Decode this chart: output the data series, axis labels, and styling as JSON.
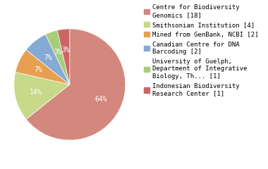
{
  "labels": [
    "Centre for Biodiversity\nGenomics [18]",
    "Smithsonian Institution [4]",
    "Mined from GenBank, NCBI [2]",
    "Canadian Centre for DNA\nBarcoding [2]",
    "University of Guelph,\nDepartment of Integrative\nBiology, Th... [1]",
    "Indonesian Biodiversity\nResearch Center [1]"
  ],
  "values": [
    18,
    4,
    2,
    2,
    1,
    1
  ],
  "colors": [
    "#d4877c",
    "#c8d98a",
    "#e8a050",
    "#85aad4",
    "#a8cc7a",
    "#cc6666"
  ],
  "pct_labels": [
    "64%",
    "14%",
    "7%",
    "7%",
    "3%",
    "3%"
  ],
  "text_color": "white",
  "font_size": 6.5,
  "pct_font_size": 7
}
